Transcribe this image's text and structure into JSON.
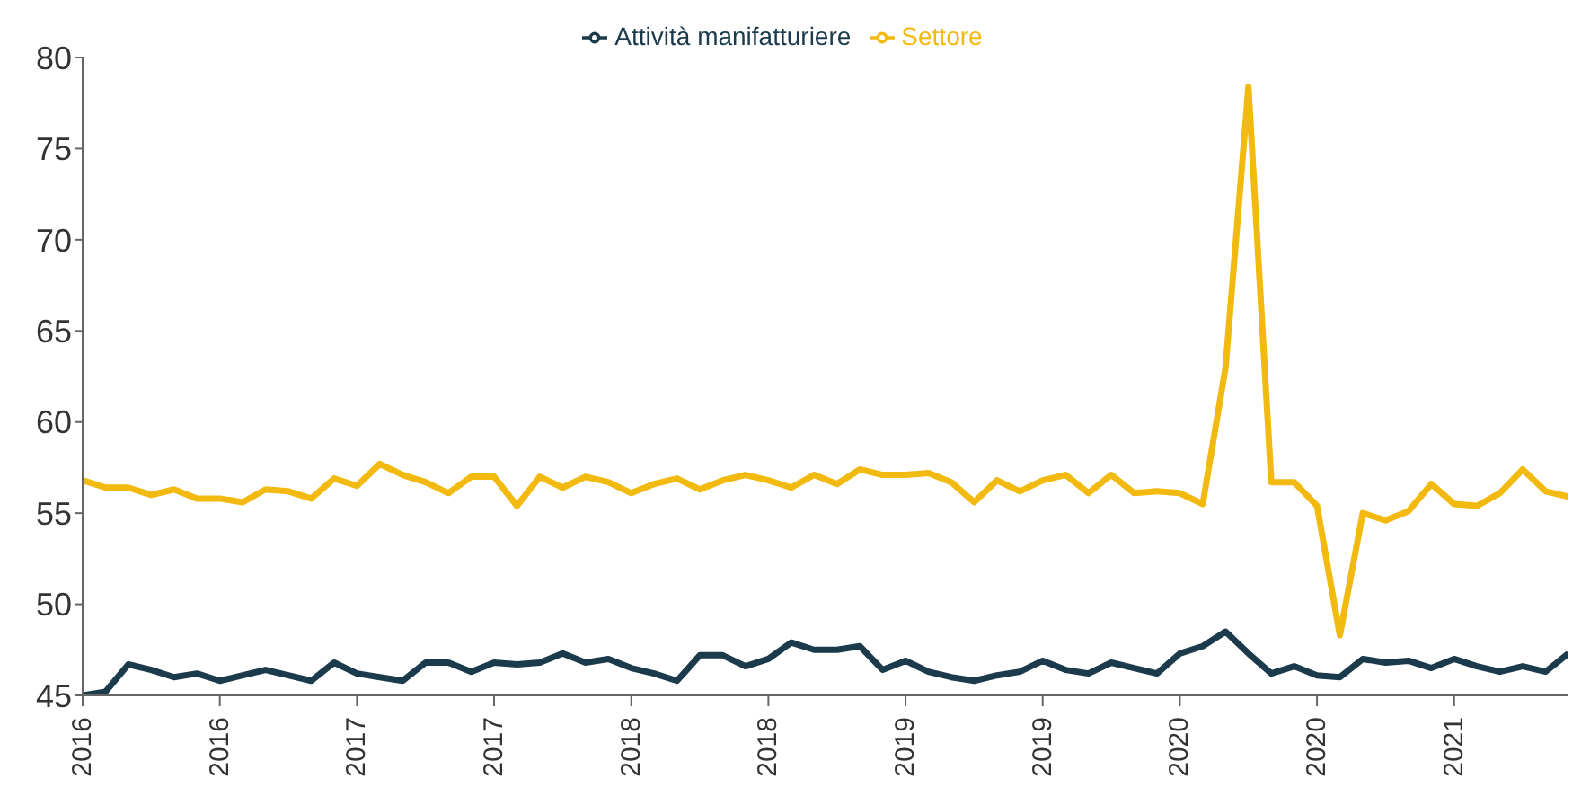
{
  "chart_data": {
    "type": "line",
    "categories": [
      "2016",
      null,
      null,
      null,
      null,
      null,
      "2016",
      null,
      null,
      null,
      null,
      null,
      "2017",
      null,
      null,
      null,
      null,
      null,
      "2017",
      null,
      null,
      null,
      null,
      null,
      "2018",
      null,
      null,
      null,
      null,
      null,
      "2018",
      null,
      null,
      null,
      null,
      null,
      "2019",
      null,
      null,
      null,
      null,
      null,
      "2019",
      null,
      null,
      null,
      null,
      null,
      "2020",
      null,
      null,
      null,
      null,
      null,
      "2020",
      null,
      null,
      null,
      null,
      null,
      "2021",
      null,
      null,
      null,
      null,
      null
    ],
    "series": [
      {
        "name": "Attività manifatturiere",
        "color": "#1b3a4b",
        "values": [
          45.0,
          45.2,
          46.7,
          46.4,
          46.0,
          46.2,
          45.8,
          46.1,
          46.4,
          46.1,
          45.8,
          46.8,
          46.2,
          46.0,
          45.8,
          46.8,
          46.8,
          46.3,
          46.8,
          46.7,
          46.8,
          47.3,
          46.8,
          47.0,
          46.5,
          46.2,
          45.8,
          47.2,
          47.2,
          46.6,
          47.0,
          47.9,
          47.5,
          47.5,
          47.7,
          46.4,
          46.9,
          46.3,
          46.0,
          45.8,
          46.1,
          46.3,
          46.9,
          46.4,
          46.2,
          46.8,
          46.5,
          46.2,
          47.3,
          47.7,
          48.5,
          47.3,
          46.2,
          46.6,
          46.1,
          46.0,
          47.0,
          46.8,
          46.9,
          46.5,
          47.0,
          46.6,
          46.3,
          46.6,
          46.3,
          47.3
        ]
      },
      {
        "name": "Settore",
        "color": "#f2b90f",
        "values": [
          56.8,
          56.4,
          56.4,
          56.0,
          56.3,
          55.8,
          55.8,
          55.6,
          56.3,
          56.2,
          55.8,
          56.9,
          56.5,
          57.7,
          57.1,
          56.7,
          56.1,
          57.0,
          57.0,
          55.4,
          57.0,
          56.4,
          57.0,
          56.7,
          56.1,
          56.6,
          56.9,
          56.3,
          56.8,
          57.1,
          56.8,
          56.4,
          57.1,
          56.6,
          57.4,
          57.1,
          57.1,
          57.2,
          56.7,
          55.6,
          56.8,
          56.2,
          56.8,
          57.1,
          56.1,
          57.1,
          56.1,
          56.2,
          56.1,
          55.5,
          63.0,
          78.4,
          56.7,
          56.7,
          55.4,
          48.3,
          55.0,
          54.6,
          55.1,
          56.6,
          55.5,
          55.4,
          56.1,
          57.4,
          56.2,
          55.9
        ]
      }
    ],
    "ylim": [
      45,
      80
    ],
    "yticks": [
      45,
      50,
      55,
      60,
      65,
      70,
      75,
      80
    ],
    "grid": false,
    "legend": "top",
    "marker": "none",
    "line_style": "solid"
  }
}
